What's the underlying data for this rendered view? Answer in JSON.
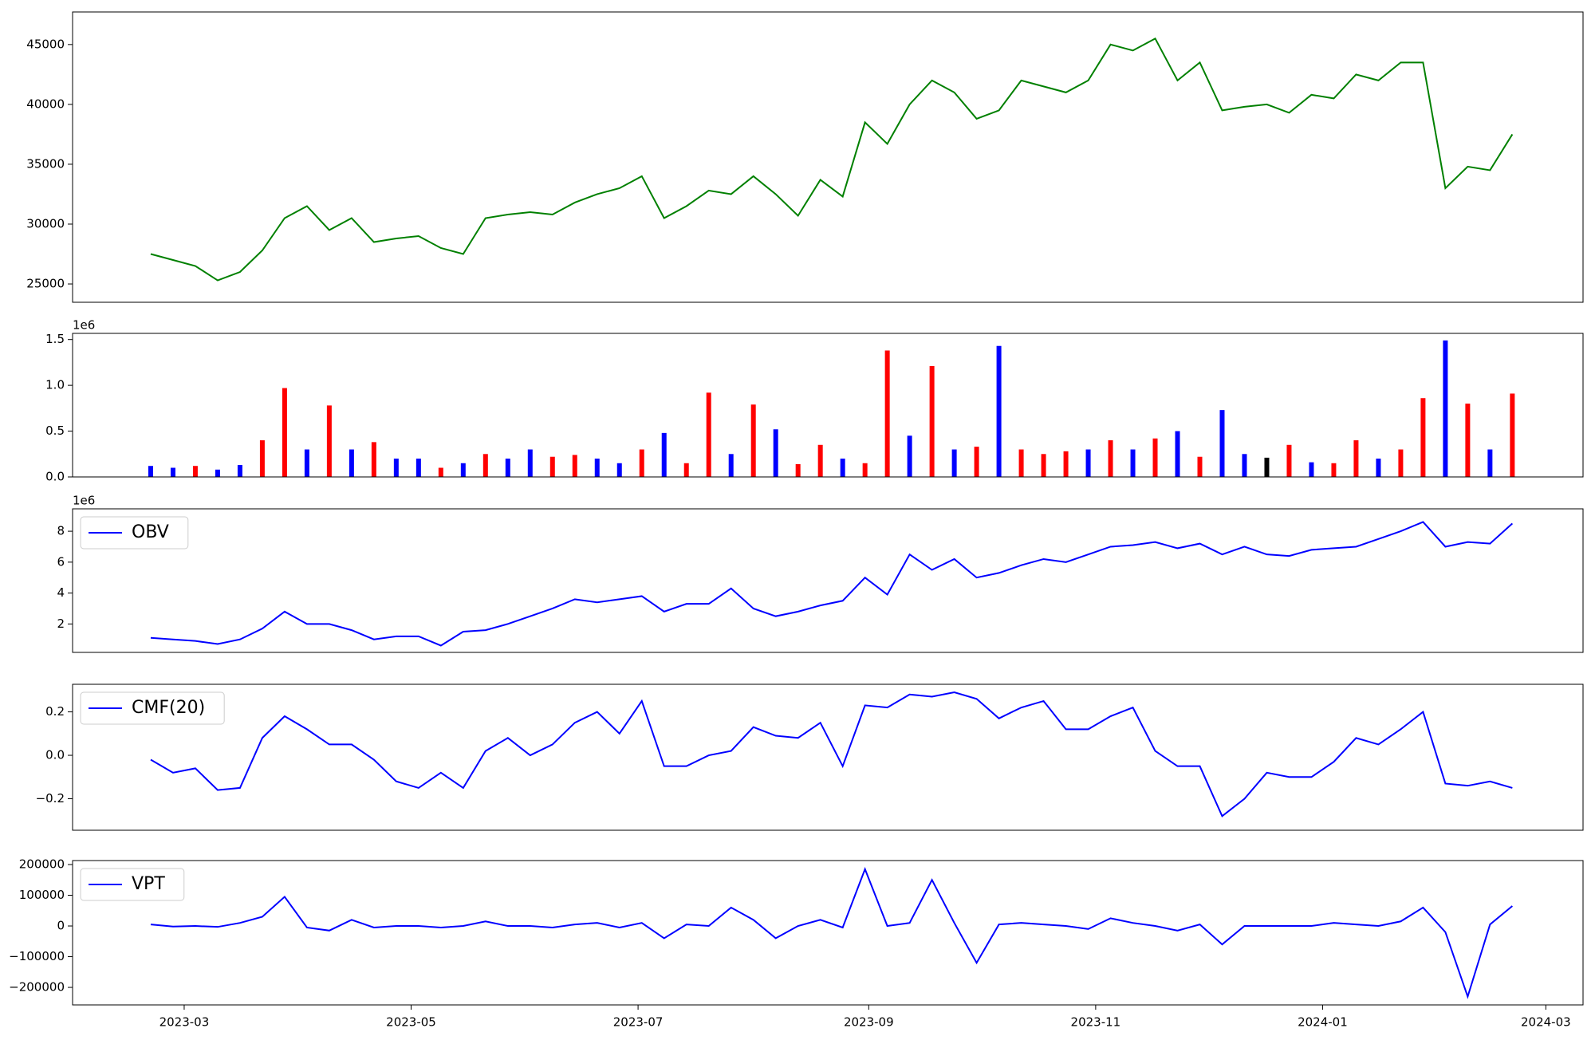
{
  "chart_data": [
    {
      "type": "line",
      "x": [
        "2023-02-20",
        "2023-02-26",
        "2023-03-04",
        "2023-03-10",
        "2023-03-16",
        "2023-03-22",
        "2023-03-28",
        "2023-04-03",
        "2023-04-09",
        "2023-04-15",
        "2023-04-21",
        "2023-04-27",
        "2023-05-03",
        "2023-05-09",
        "2023-05-15",
        "2023-05-21",
        "2023-05-27",
        "2023-06-02",
        "2023-06-08",
        "2023-06-14",
        "2023-06-20",
        "2023-06-26",
        "2023-07-02",
        "2023-07-08",
        "2023-07-14",
        "2023-07-20",
        "2023-07-26",
        "2023-08-01",
        "2023-08-07",
        "2023-08-13",
        "2023-08-19",
        "2023-08-25",
        "2023-08-31",
        "2023-09-06",
        "2023-09-12",
        "2023-09-18",
        "2023-09-24",
        "2023-09-30",
        "2023-10-06",
        "2023-10-12",
        "2023-10-18",
        "2023-10-24",
        "2023-10-30",
        "2023-11-05",
        "2023-11-11",
        "2023-11-17",
        "2023-11-23",
        "2023-11-29",
        "2023-12-05",
        "2023-12-11",
        "2023-12-17",
        "2023-12-23",
        "2023-12-29",
        "2024-01-04",
        "2024-01-10",
        "2024-01-16",
        "2024-01-22",
        "2024-01-28",
        "2024-02-03",
        "2024-02-09",
        "2024-02-15",
        "2024-02-21"
      ],
      "series": [
        {
          "color": "green",
          "values": [
            27500,
            27000,
            26500,
            25300,
            26000,
            27800,
            30500,
            31500,
            29500,
            30500,
            28500,
            28800,
            29000,
            28000,
            27500,
            30500,
            30800,
            31000,
            30800,
            31800,
            32500,
            33000,
            34000,
            30500,
            31500,
            32800,
            32500,
            34000,
            32500,
            30700,
            33700,
            32300,
            38500,
            36700,
            40000,
            42000,
            41000,
            38800,
            39500,
            42000,
            41500,
            41000,
            42000,
            45000,
            44500,
            45500,
            42000,
            43500,
            39500,
            39800,
            40000,
            39300,
            40800,
            40500,
            42500,
            42000,
            43500,
            43500,
            33000,
            34800,
            34500,
            37500
          ]
        }
      ],
      "xlim": [
        "2023-01-30",
        "2024-03-11"
      ],
      "ylim": [
        23470,
        47720
      ],
      "yticks": [
        25000,
        30000,
        35000,
        40000,
        45000
      ]
    },
    {
      "type": "bar",
      "offset_text": "1e6",
      "x": [
        "2023-02-20",
        "2023-02-26",
        "2023-03-04",
        "2023-03-10",
        "2023-03-16",
        "2023-03-22",
        "2023-03-28",
        "2023-04-03",
        "2023-04-09",
        "2023-04-15",
        "2023-04-21",
        "2023-04-27",
        "2023-05-03",
        "2023-05-09",
        "2023-05-15",
        "2023-05-21",
        "2023-05-27",
        "2023-06-02",
        "2023-06-08",
        "2023-06-14",
        "2023-06-20",
        "2023-06-26",
        "2023-07-02",
        "2023-07-08",
        "2023-07-14",
        "2023-07-20",
        "2023-07-26",
        "2023-08-01",
        "2023-08-07",
        "2023-08-13",
        "2023-08-19",
        "2023-08-25",
        "2023-08-31",
        "2023-09-06",
        "2023-09-12",
        "2023-09-18",
        "2023-09-24",
        "2023-09-30",
        "2023-10-06",
        "2023-10-12",
        "2023-10-18",
        "2023-10-24",
        "2023-10-30",
        "2023-11-05",
        "2023-11-11",
        "2023-11-17",
        "2023-11-23",
        "2023-11-29",
        "2023-12-05",
        "2023-12-11",
        "2023-12-17",
        "2023-12-23",
        "2023-12-29",
        "2024-01-04",
        "2024-01-10",
        "2024-01-16",
        "2024-01-22",
        "2024-01-28",
        "2024-02-03",
        "2024-02-09",
        "2024-02-15",
        "2024-02-21"
      ],
      "values": [
        0.12,
        0.1,
        0.12,
        0.08,
        0.13,
        0.4,
        0.97,
        0.3,
        0.78,
        0.3,
        0.38,
        0.2,
        0.2,
        0.1,
        0.15,
        0.25,
        0.2,
        0.3,
        0.22,
        0.24,
        0.2,
        0.15,
        0.3,
        0.48,
        0.15,
        0.92,
        0.25,
        0.79,
        0.52,
        0.14,
        0.35,
        0.2,
        0.15,
        1.38,
        0.45,
        1.21,
        0.3,
        0.33,
        1.43,
        0.3,
        0.25,
        0.28,
        0.3,
        0.4,
        0.3,
        0.42,
        0.5,
        0.22,
        0.73,
        0.25,
        0.21,
        0.35,
        0.16,
        0.15,
        0.4,
        0.2,
        0.3,
        0.86,
        1.49,
        0.8,
        0.3,
        0.91
      ],
      "colors": [
        "blue",
        "blue",
        "red",
        "blue",
        "blue",
        "red",
        "red",
        "blue",
        "red",
        "blue",
        "red",
        "blue",
        "blue",
        "red",
        "blue",
        "red",
        "blue",
        "blue",
        "red",
        "red",
        "blue",
        "blue",
        "red",
        "blue",
        "red",
        "red",
        "blue",
        "red",
        "blue",
        "red",
        "red",
        "blue",
        "red",
        "red",
        "blue",
        "red",
        "blue",
        "red",
        "blue",
        "red",
        "red",
        "red",
        "blue",
        "red",
        "blue",
        "red",
        "blue",
        "red",
        "blue",
        "blue",
        "black",
        "red",
        "blue",
        "red",
        "red",
        "blue",
        "red",
        "red",
        "blue",
        "red",
        "blue",
        "red"
      ],
      "xlim": [
        "2023-01-30",
        "2024-03-11"
      ],
      "ylim": [
        0,
        1.567
      ],
      "yticks": [
        {
          "value": 0,
          "label": "0.0"
        },
        {
          "value": 0.5,
          "label": "0.5"
        },
        {
          "value": 1,
          "label": "1.0"
        },
        {
          "value": 1.5,
          "label": "1.5"
        }
      ]
    },
    {
      "type": "line",
      "offset_text": "1e6",
      "legend": "upper left",
      "x": [
        "2023-02-20",
        "2023-02-26",
        "2023-03-04",
        "2023-03-10",
        "2023-03-16",
        "2023-03-22",
        "2023-03-28",
        "2023-04-03",
        "2023-04-09",
        "2023-04-15",
        "2023-04-21",
        "2023-04-27",
        "2023-05-03",
        "2023-05-09",
        "2023-05-15",
        "2023-05-21",
        "2023-05-27",
        "2023-06-02",
        "2023-06-08",
        "2023-06-14",
        "2023-06-20",
        "2023-06-26",
        "2023-07-02",
        "2023-07-08",
        "2023-07-14",
        "2023-07-20",
        "2023-07-26",
        "2023-08-01",
        "2023-08-07",
        "2023-08-13",
        "2023-08-19",
        "2023-08-25",
        "2023-08-31",
        "2023-09-06",
        "2023-09-12",
        "2023-09-18",
        "2023-09-24",
        "2023-09-30",
        "2023-10-06",
        "2023-10-12",
        "2023-10-18",
        "2023-10-24",
        "2023-10-30",
        "2023-11-05",
        "2023-11-11",
        "2023-11-17",
        "2023-11-23",
        "2023-11-29",
        "2023-12-05",
        "2023-12-11",
        "2023-12-17",
        "2023-12-23",
        "2023-12-29",
        "2024-01-04",
        "2024-01-10",
        "2024-01-16",
        "2024-01-22",
        "2024-01-28",
        "2024-02-03",
        "2024-02-09",
        "2024-02-15",
        "2024-02-21"
      ],
      "series": [
        {
          "name": "OBV",
          "color": "blue",
          "values": [
            1.1,
            1.0,
            0.9,
            0.7,
            1.0,
            1.7,
            2.8,
            2.0,
            2.0,
            1.6,
            1.0,
            1.2,
            1.2,
            0.6,
            1.5,
            1.6,
            2.0,
            2.5,
            3.0,
            3.6,
            3.4,
            3.6,
            3.8,
            2.8,
            3.3,
            3.3,
            4.3,
            3.0,
            2.5,
            2.8,
            3.2,
            3.5,
            5.0,
            3.9,
            6.5,
            5.5,
            6.2,
            5.0,
            5.3,
            5.8,
            6.2,
            6.0,
            6.5,
            7.0,
            7.1,
            7.3,
            6.9,
            7.2,
            6.5,
            7.0,
            6.5,
            6.4,
            6.8,
            6.9,
            7.0,
            7.5,
            8.0,
            8.6,
            7.0,
            7.3,
            7.2,
            8.5
          ]
        }
      ],
      "xlim": [
        "2023-01-30",
        "2024-03-11"
      ],
      "ylim": [
        0.16,
        9.45
      ],
      "yticks": [
        2,
        4,
        6,
        8
      ]
    },
    {
      "type": "line",
      "legend": "upper left",
      "x": [
        "2023-02-20",
        "2023-02-26",
        "2023-03-04",
        "2023-03-10",
        "2023-03-16",
        "2023-03-22",
        "2023-03-28",
        "2023-04-03",
        "2023-04-09",
        "2023-04-15",
        "2023-04-21",
        "2023-04-27",
        "2023-05-03",
        "2023-05-09",
        "2023-05-15",
        "2023-05-21",
        "2023-05-27",
        "2023-06-02",
        "2023-06-08",
        "2023-06-14",
        "2023-06-20",
        "2023-06-26",
        "2023-07-02",
        "2023-07-08",
        "2023-07-14",
        "2023-07-20",
        "2023-07-26",
        "2023-08-01",
        "2023-08-07",
        "2023-08-13",
        "2023-08-19",
        "2023-08-25",
        "2023-08-31",
        "2023-09-06",
        "2023-09-12",
        "2023-09-18",
        "2023-09-24",
        "2023-09-30",
        "2023-10-06",
        "2023-10-12",
        "2023-10-18",
        "2023-10-24",
        "2023-10-30",
        "2023-11-05",
        "2023-11-11",
        "2023-11-17",
        "2023-11-23",
        "2023-11-29",
        "2023-12-05",
        "2023-12-11",
        "2023-12-17",
        "2023-12-23",
        "2023-12-29",
        "2024-01-04",
        "2024-01-10",
        "2024-01-16",
        "2024-01-22",
        "2024-01-28",
        "2024-02-03",
        "2024-02-09",
        "2024-02-15",
        "2024-02-21"
      ],
      "series": [
        {
          "name": "CMF(20)",
          "color": "blue",
          "values": [
            -0.02,
            -0.08,
            -0.06,
            -0.16,
            -0.15,
            0.08,
            0.18,
            0.12,
            0.05,
            0.05,
            -0.02,
            -0.12,
            -0.15,
            -0.08,
            -0.15,
            0.02,
            0.08,
            0.0,
            0.05,
            0.15,
            0.2,
            0.1,
            0.25,
            -0.05,
            -0.05,
            0.0,
            0.02,
            0.13,
            0.09,
            0.08,
            0.15,
            -0.05,
            0.23,
            0.22,
            0.28,
            0.27,
            0.29,
            0.26,
            0.17,
            0.22,
            0.25,
            0.12,
            0.12,
            0.18,
            0.22,
            0.02,
            -0.05,
            -0.05,
            -0.28,
            -0.2,
            -0.08,
            -0.1,
            -0.1,
            -0.03,
            0.08,
            0.05,
            0.12,
            0.2,
            -0.13,
            -0.14,
            -0.12,
            -0.15
          ]
        }
      ],
      "xlim": [
        "2023-01-30",
        "2024-03-11"
      ],
      "ylim": [
        -0.345,
        0.327
      ],
      "yticks": [
        {
          "value": -0.2,
          "label": "−0.2"
        },
        {
          "value": 0,
          "label": "0.0"
        },
        {
          "value": 0.2,
          "label": "0.2"
        }
      ]
    },
    {
      "type": "line",
      "legend": "upper left",
      "x": [
        "2023-02-20",
        "2023-02-26",
        "2023-03-04",
        "2023-03-10",
        "2023-03-16",
        "2023-03-22",
        "2023-03-28",
        "2023-04-03",
        "2023-04-09",
        "2023-04-15",
        "2023-04-21",
        "2023-04-27",
        "2023-05-03",
        "2023-05-09",
        "2023-05-15",
        "2023-05-21",
        "2023-05-27",
        "2023-06-02",
        "2023-06-08",
        "2023-06-14",
        "2023-06-20",
        "2023-06-26",
        "2023-07-02",
        "2023-07-08",
        "2023-07-14",
        "2023-07-20",
        "2023-07-26",
        "2023-08-01",
        "2023-08-07",
        "2023-08-13",
        "2023-08-19",
        "2023-08-25",
        "2023-08-31",
        "2023-09-06",
        "2023-09-12",
        "2023-09-18",
        "2023-09-24",
        "2023-09-30",
        "2023-10-06",
        "2023-10-12",
        "2023-10-18",
        "2023-10-24",
        "2023-10-30",
        "2023-11-05",
        "2023-11-11",
        "2023-11-17",
        "2023-11-23",
        "2023-11-29",
        "2023-12-05",
        "2023-12-11",
        "2023-12-17",
        "2023-12-23",
        "2023-12-29",
        "2024-01-04",
        "2024-01-10",
        "2024-01-16",
        "2024-01-22",
        "2024-01-28",
        "2024-02-03",
        "2024-02-09",
        "2024-02-15",
        "2024-02-21"
      ],
      "series": [
        {
          "name": "VPT",
          "color": "blue",
          "values": [
            5000,
            -2000,
            0,
            -3000,
            10000,
            30000,
            95000,
            -5000,
            -15000,
            20000,
            -5000,
            0,
            0,
            -5000,
            0,
            15000,
            0,
            0,
            -5000,
            5000,
            10000,
            -5000,
            10000,
            -40000,
            5000,
            0,
            60000,
            20000,
            -40000,
            0,
            20000,
            -5000,
            185000,
            0,
            10000,
            150000,
            10000,
            -120000,
            5000,
            10000,
            5000,
            0,
            -10000,
            25000,
            10000,
            0,
            -15000,
            5000,
            -60000,
            0,
            0,
            0,
            0,
            10000,
            5000,
            0,
            15000,
            60000,
            -20000,
            -230000,
            5000,
            65000
          ]
        }
      ],
      "xlim": [
        "2023-01-30",
        "2024-03-11"
      ],
      "ylim": [
        -257000,
        213000
      ],
      "yticks": [
        {
          "value": -200000,
          "label": "−200000"
        },
        {
          "value": -100000,
          "label": "−100000"
        },
        0,
        100000,
        200000
      ],
      "xticks": [
        {
          "value": "2023-03-01",
          "label": "2023-03"
        },
        {
          "value": "2023-05-01",
          "label": "2023-05"
        },
        {
          "value": "2023-07-01",
          "label": "2023-07"
        },
        {
          "value": "2023-09-01",
          "label": "2023-09"
        },
        {
          "value": "2023-11-01",
          "label": "2023-11"
        },
        {
          "value": "2024-01-01",
          "label": "2024-01"
        },
        {
          "value": "2024-03-01",
          "label": "2024-03"
        }
      ]
    }
  ]
}
